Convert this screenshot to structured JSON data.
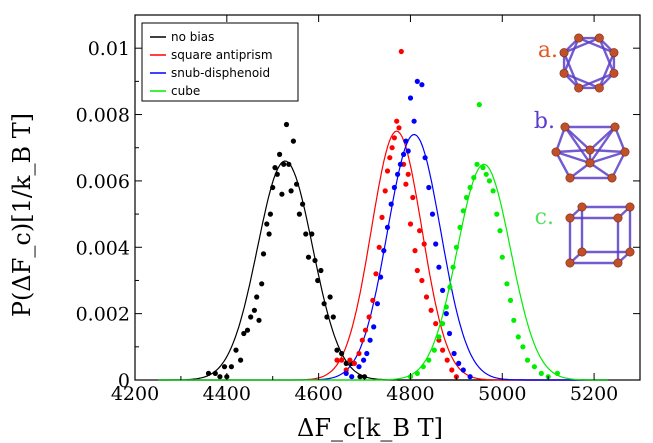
{
  "chart_data": {
    "type": "scatter",
    "title": "",
    "xlabel": "ΔF_c[k_B T]",
    "ylabel": "P(ΔF_c)[1/k_B T]",
    "xlim": [
      4200,
      5300
    ],
    "ylim": [
      0,
      0.011
    ],
    "xticks": [
      "4200",
      "4400",
      "4600",
      "4800",
      "5000",
      "5200"
    ],
    "yticks": [
      "0",
      "0.002",
      "0.004",
      "0.006",
      "0.008",
      "0.01"
    ],
    "grid": false,
    "legend_position": "top-left",
    "series": [
      {
        "name": "no bias",
        "color": "#000000",
        "fit": {
          "mean": 4527,
          "sd": 60,
          "peak": 0.0066
        },
        "points": [
          [
            4360,
            0.0002
          ],
          [
            4375,
            0.0002
          ],
          [
            4385,
            0.0001
          ],
          [
            4395,
            0.0004
          ],
          [
            4400,
            0.0001
          ],
          [
            4410,
            0.0004
          ],
          [
            4420,
            0.0009
          ],
          [
            4430,
            0.0006
          ],
          [
            4437,
            0.0014
          ],
          [
            4445,
            0.0015
          ],
          [
            4452,
            0.0019
          ],
          [
            4460,
            0.0021
          ],
          [
            4465,
            0.0025
          ],
          [
            4470,
            0.0018
          ],
          [
            4476,
            0.0029
          ],
          [
            4480,
            0.0038
          ],
          [
            4487,
            0.0047
          ],
          [
            4492,
            0.0044
          ],
          [
            4495,
            0.005
          ],
          [
            4500,
            0.0058
          ],
          [
            4505,
            0.0064
          ],
          [
            4510,
            0.0062
          ],
          [
            4515,
            0.0068
          ],
          [
            4520,
            0.0056
          ],
          [
            4524,
            0.0065
          ],
          [
            4530,
            0.0077
          ],
          [
            4535,
            0.0065
          ],
          [
            4540,
            0.0057
          ],
          [
            4545,
            0.0072
          ],
          [
            4552,
            0.0059
          ],
          [
            4558,
            0.005
          ],
          [
            4565,
            0.0053
          ],
          [
            4572,
            0.0044
          ],
          [
            4578,
            0.0037
          ],
          [
            4585,
            0.0044
          ],
          [
            4592,
            0.0036
          ],
          [
            4598,
            0.003
          ],
          [
            4605,
            0.0033
          ],
          [
            4612,
            0.0023
          ],
          [
            4618,
            0.0019
          ],
          [
            4625,
            0.0025
          ],
          [
            4632,
            0.0019
          ],
          [
            4640,
            0.0009
          ],
          [
            4650,
            0.0008
          ],
          [
            4660,
            0.0005
          ],
          [
            4672,
            0.0005
          ],
          [
            4690,
            0.0001
          ],
          [
            4700,
            0.0001
          ]
        ]
      },
      {
        "name": "square antiprism",
        "color": "#ff0000",
        "fit": {
          "mean": 4770,
          "sd": 55,
          "peak": 0.0075
        },
        "points": [
          [
            4640,
            0.0006
          ],
          [
            4650,
            0.0006
          ],
          [
            4660,
            0.0003
          ],
          [
            4668,
            0.0006
          ],
          [
            4678,
            0.0005
          ],
          [
            4688,
            0.0008
          ],
          [
            4695,
            0.0012
          ],
          [
            4702,
            0.0015
          ],
          [
            4710,
            0.0019
          ],
          [
            4718,
            0.0024
          ],
          [
            4725,
            0.0032
          ],
          [
            4732,
            0.004
          ],
          [
            4738,
            0.0049
          ],
          [
            4745,
            0.0057
          ],
          [
            4750,
            0.0063
          ],
          [
            4755,
            0.0067
          ],
          [
            4760,
            0.007
          ],
          [
            4765,
            0.0073
          ],
          [
            4770,
            0.0078
          ],
          [
            4775,
            0.0076
          ],
          [
            4780,
            0.0099
          ],
          [
            4785,
            0.0065
          ],
          [
            4790,
            0.0059
          ],
          [
            4795,
            0.0062
          ],
          [
            4800,
            0.0047
          ],
          [
            4805,
            0.0055
          ],
          [
            4810,
            0.0039
          ],
          [
            4815,
            0.0033
          ],
          [
            4820,
            0.0045
          ],
          [
            4825,
            0.003
          ],
          [
            4830,
            0.0041
          ],
          [
            4835,
            0.0025
          ],
          [
            4845,
            0.0021
          ],
          [
            4855,
            0.0017
          ],
          [
            4862,
            0.0012
          ],
          [
            4870,
            0.0009
          ],
          [
            4880,
            0.0006
          ],
          [
            4890,
            0.0003
          ],
          [
            4900,
            0.0001
          ]
        ]
      },
      {
        "name": "snub-disphenoid",
        "color": "#0000ff",
        "fit": {
          "mean": 4808,
          "sd": 58,
          "peak": 0.0074
        },
        "points": [
          [
            4660,
            0.0002
          ],
          [
            4672,
            0.0001
          ],
          [
            4688,
            0.0004
          ],
          [
            4698,
            0.0006
          ],
          [
            4705,
            0.0008
          ],
          [
            4712,
            0.0012
          ],
          [
            4720,
            0.0016
          ],
          [
            4728,
            0.0023
          ],
          [
            4735,
            0.0031
          ],
          [
            4742,
            0.0039
          ],
          [
            4750,
            0.0046
          ],
          [
            4758,
            0.0053
          ],
          [
            4765,
            0.0058
          ],
          [
            4772,
            0.0062
          ],
          [
            4778,
            0.0065
          ],
          [
            4785,
            0.0068
          ],
          [
            4790,
            0.0072
          ],
          [
            4795,
            0.0069
          ],
          [
            4800,
            0.0085
          ],
          [
            4808,
            0.0078
          ],
          [
            4815,
            0.009
          ],
          [
            4825,
            0.0089
          ],
          [
            4832,
            0.0067
          ],
          [
            4840,
            0.0058
          ],
          [
            4848,
            0.005
          ],
          [
            4855,
            0.0041
          ],
          [
            4862,
            0.0034
          ],
          [
            4870,
            0.0027
          ],
          [
            4878,
            0.002
          ],
          [
            4885,
            0.0014
          ],
          [
            4895,
            0.0008
          ],
          [
            4905,
            0.0005
          ],
          [
            4915,
            0.0003
          ],
          [
            4930,
            0.0001
          ]
        ]
      },
      {
        "name": "cube",
        "color": "#00ee00",
        "fit": {
          "mean": 4960,
          "sd": 58,
          "peak": 0.0065
        },
        "points": [
          [
            4800,
            0.0001
          ],
          [
            4815,
            0.0002
          ],
          [
            4828,
            0.0004
          ],
          [
            4840,
            0.0006
          ],
          [
            4852,
            0.0009
          ],
          [
            4862,
            0.0013
          ],
          [
            4870,
            0.0017
          ],
          [
            4878,
            0.0022
          ],
          [
            4886,
            0.0028
          ],
          [
            4893,
            0.0034
          ],
          [
            4900,
            0.004
          ],
          [
            4908,
            0.0046
          ],
          [
            4915,
            0.0051
          ],
          [
            4922,
            0.0055
          ],
          [
            4930,
            0.0058
          ],
          [
            4938,
            0.0061
          ],
          [
            4945,
            0.0065
          ],
          [
            4950,
            0.0083
          ],
          [
            4958,
            0.0064
          ],
          [
            4965,
            0.0062
          ],
          [
            4972,
            0.006
          ],
          [
            4980,
            0.0057
          ],
          [
            4988,
            0.005
          ],
          [
            4995,
            0.0045
          ],
          [
            5000,
            0.0037
          ],
          [
            5010,
            0.0029
          ],
          [
            5018,
            0.0024
          ],
          [
            5025,
            0.0018
          ],
          [
            5035,
            0.0013
          ],
          [
            5045,
            0.001
          ],
          [
            5055,
            0.0006
          ],
          [
            5070,
            0.0004
          ],
          [
            5085,
            0.0002
          ],
          [
            5100,
            0.0001
          ],
          [
            5120,
            0.0002
          ]
        ]
      }
    ]
  },
  "insets": [
    {
      "label": "a.",
      "color": "#e05a20",
      "shape": "square-antiprism-icon"
    },
    {
      "label": "b.",
      "color": "#5a3ad0",
      "shape": "snub-disphenoid-icon"
    },
    {
      "label": "c.",
      "color": "#55e060",
      "shape": "cube-icon"
    }
  ]
}
